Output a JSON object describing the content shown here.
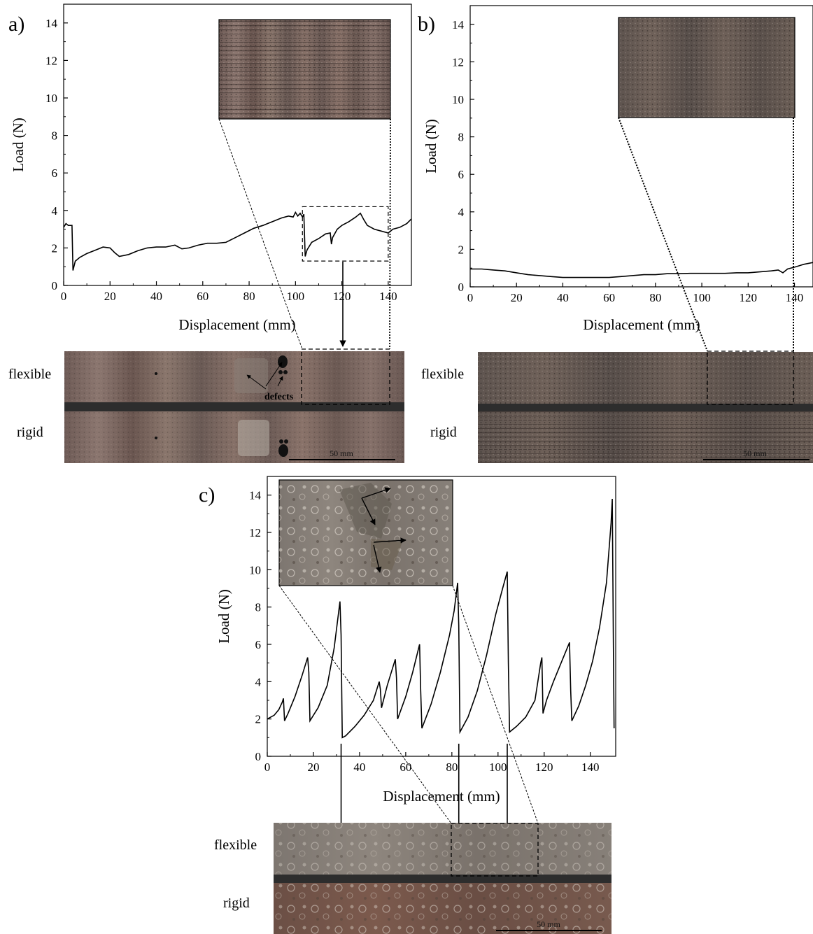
{
  "chart_data": [
    {
      "panel": "a)",
      "type": "line",
      "xlabel": "Displacement (mm)",
      "ylabel": "Load (N)",
      "xlim": [
        0,
        150
      ],
      "ylim": [
        0,
        15
      ],
      "xticks": [
        0,
        20,
        40,
        60,
        80,
        100,
        120,
        140
      ],
      "yticks": [
        0,
        2,
        4,
        6,
        8,
        10,
        12,
        14
      ],
      "highlight_box": {
        "x": [
          103,
          140
        ],
        "y": [
          1.3,
          4.2
        ]
      },
      "x": [
        0,
        1,
        2,
        3,
        3.6,
        4,
        5,
        7,
        10,
        14,
        17,
        20,
        22,
        24,
        28,
        32,
        36,
        40,
        44,
        48,
        51,
        54,
        58,
        62,
        66,
        70,
        74,
        78,
        82,
        86,
        90,
        94,
        97,
        99,
        100,
        101,
        102,
        103,
        103.6,
        104.2,
        105,
        107,
        110,
        113,
        115,
        115.5,
        116,
        118,
        120,
        123,
        126,
        128,
        129.5,
        131,
        134,
        137,
        140,
        142,
        145,
        148,
        150
      ],
      "y": [
        3.1,
        3.3,
        3.2,
        3.2,
        3.2,
        0.8,
        1.3,
        1.5,
        1.7,
        1.9,
        2.05,
        2.0,
        1.75,
        1.55,
        1.65,
        1.85,
        2.0,
        2.05,
        2.05,
        2.15,
        1.95,
        2.0,
        2.15,
        2.25,
        2.25,
        2.3,
        2.55,
        2.8,
        3.05,
        3.2,
        3.4,
        3.6,
        3.7,
        3.65,
        3.9,
        3.7,
        3.85,
        3.65,
        3.8,
        1.55,
        1.9,
        2.3,
        2.5,
        2.75,
        2.8,
        2.2,
        2.55,
        3.0,
        3.2,
        3.4,
        3.65,
        3.85,
        3.5,
        3.2,
        3.0,
        2.9,
        2.8,
        3.0,
        3.1,
        3.3,
        3.55
      ],
      "side_labels": [
        "flexible",
        "rigid"
      ],
      "annotation": "defects",
      "scale_bar": "50 mm"
    },
    {
      "panel": "b)",
      "type": "line",
      "xlabel": "Displacement (mm)",
      "ylabel": "Load (N)",
      "xlim": [
        0,
        148
      ],
      "ylim": [
        0,
        15
      ],
      "xticks": [
        0,
        20,
        40,
        60,
        80,
        100,
        120,
        140
      ],
      "yticks": [
        0,
        2,
        4,
        6,
        8,
        10,
        12,
        14
      ],
      "x": [
        0,
        5,
        10,
        15,
        20,
        25,
        30,
        35,
        40,
        45,
        50,
        55,
        60,
        65,
        70,
        75,
        80,
        85,
        90,
        95,
        100,
        105,
        110,
        115,
        120,
        125,
        130,
        133,
        135,
        137,
        140,
        144,
        148
      ],
      "y": [
        0.95,
        0.95,
        0.9,
        0.85,
        0.75,
        0.65,
        0.6,
        0.55,
        0.5,
        0.5,
        0.5,
        0.5,
        0.5,
        0.55,
        0.6,
        0.65,
        0.65,
        0.7,
        0.7,
        0.72,
        0.72,
        0.72,
        0.72,
        0.75,
        0.75,
        0.8,
        0.85,
        0.9,
        0.75,
        0.95,
        1.05,
        1.2,
        1.3
      ],
      "side_labels": [
        "flexible",
        "rigid"
      ],
      "scale_bar": "50 mm"
    },
    {
      "panel": "c)",
      "type": "line",
      "xlabel": "Displacement (mm)",
      "ylabel": "Load (N)",
      "xlim": [
        0,
        151
      ],
      "ylim": [
        0,
        15
      ],
      "xticks": [
        0,
        20,
        40,
        60,
        80,
        100,
        120,
        140
      ],
      "yticks": [
        0,
        2,
        4,
        6,
        8,
        10,
        12,
        14
      ],
      "x": [
        0,
        3,
        5,
        6.5,
        7,
        7.5,
        9,
        12,
        15,
        17.5,
        18,
        18.5,
        22,
        26,
        29,
        31.5,
        32,
        32.5,
        34,
        38,
        42,
        46,
        48.5,
        49,
        49.5,
        52,
        55.5,
        56,
        56.5,
        60,
        63,
        66,
        66.5,
        67,
        71,
        75,
        79,
        81,
        82.5,
        83,
        83.5,
        87,
        91,
        95,
        99,
        102,
        104,
        104.5,
        105,
        108,
        112,
        116,
        118.5,
        119,
        119.5,
        121,
        124,
        128,
        131,
        131.5,
        132,
        135,
        138,
        141,
        144,
        147,
        149,
        149.5,
        150,
        150.3
      ],
      "y": [
        2.0,
        2.2,
        2.5,
        2.9,
        3.1,
        1.9,
        2.3,
        3.2,
        4.3,
        5.3,
        4.5,
        1.9,
        2.6,
        3.8,
        5.8,
        8.3,
        6.5,
        1.0,
        1.1,
        1.6,
        2.2,
        3.0,
        4.0,
        3.6,
        2.6,
        3.8,
        5.2,
        4.2,
        2.0,
        3.2,
        4.5,
        6.0,
        3.5,
        1.5,
        2.8,
        4.5,
        6.5,
        7.8,
        9.3,
        7.0,
        1.3,
        2.1,
        3.5,
        5.4,
        7.6,
        9.0,
        9.9,
        5.0,
        1.3,
        1.6,
        2.1,
        3.0,
        5.0,
        5.3,
        2.3,
        3.0,
        4.0,
        5.2,
        6.1,
        3.5,
        1.9,
        2.7,
        3.8,
        5.1,
        6.9,
        9.3,
        12.5,
        13.8,
        6.0,
        1.5
      ],
      "drop_markers": [
        32,
        83,
        104
      ],
      "side_labels": [
        "flexible",
        "rigid"
      ],
      "scale_bar": "50 mm"
    }
  ]
}
